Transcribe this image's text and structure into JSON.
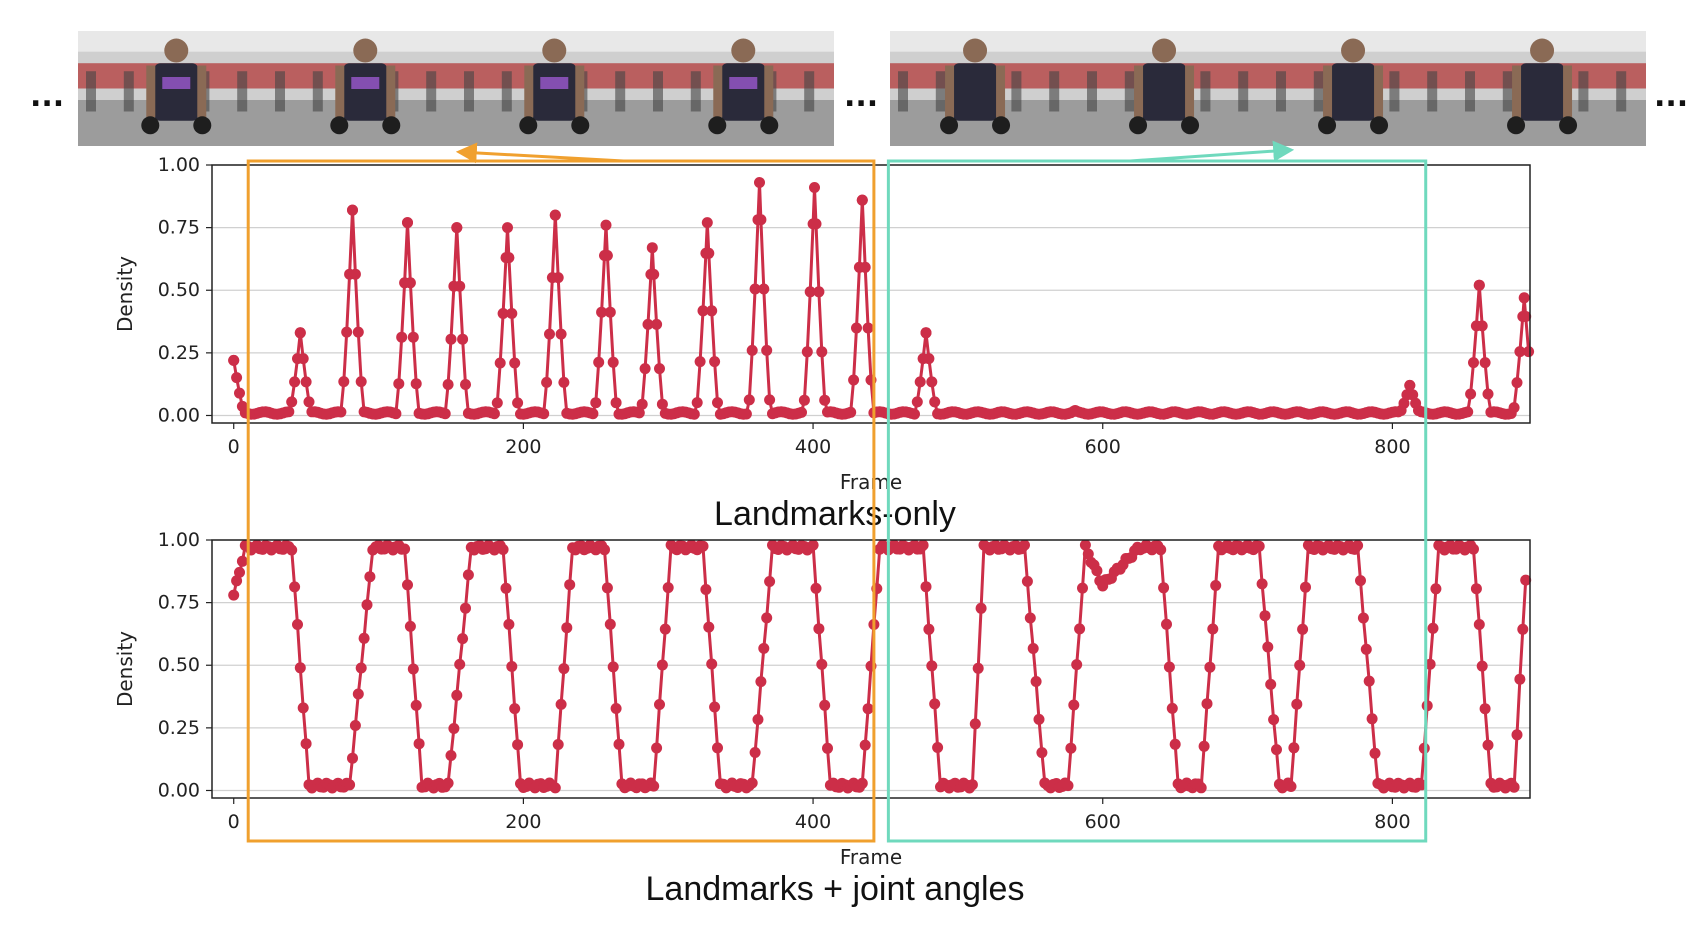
{
  "filmstrip": {
    "ellipsis": "...",
    "left_frames": [
      {
        "label": "gym-frame"
      },
      {
        "label": "gym-frame"
      },
      {
        "label": "gym-frame"
      },
      {
        "label": "gym-frame"
      }
    ],
    "right_frames": [
      {
        "label": "gym-frame"
      },
      {
        "label": "gym-frame"
      },
      {
        "label": "gym-frame"
      },
      {
        "label": "gym-frame"
      }
    ]
  },
  "colors": {
    "series": "#cc2e48",
    "orange_box": "#f0a02e",
    "teal_box": "#6fd9bd",
    "grid": "#d0d0d0",
    "axis": "#222222"
  },
  "highlight_ranges": [
    {
      "name": "orange",
      "frames": [
        10,
        442
      ]
    },
    {
      "name": "teal",
      "frames": [
        452,
        823
      ]
    }
  ],
  "chart_data": [
    {
      "type": "line",
      "title": "Landmarks-only",
      "xlabel": "Frame",
      "ylabel": "Density",
      "xlim": [
        -15,
        895
      ],
      "ylim": [
        -0.03,
        1.0
      ],
      "xticks": [
        0,
        200,
        400,
        600,
        800
      ],
      "xtick_labels": [
        "0",
        "200",
        "400",
        "600",
        "800"
      ],
      "yticks": [
        0.0,
        0.25,
        0.5,
        0.75,
        1.0
      ],
      "ytick_labels": [
        "0.00",
        "0.25",
        "0.50",
        "0.75",
        "1.00"
      ],
      "grid": true,
      "markers": true,
      "baseline": 0.01,
      "peaks": [
        [
          0,
          0.22
        ],
        [
          46,
          0.33
        ],
        [
          82,
          0.82
        ],
        [
          120,
          0.77
        ],
        [
          154,
          0.75
        ],
        [
          189,
          0.75
        ],
        [
          222,
          0.8
        ],
        [
          257,
          0.76
        ],
        [
          289,
          0.67
        ],
        [
          327,
          0.77
        ],
        [
          363,
          0.93
        ],
        [
          401,
          0.91
        ],
        [
          434,
          0.86
        ],
        [
          478,
          0.33
        ],
        [
          581,
          0.02
        ],
        [
          812,
          0.12
        ],
        [
          860,
          0.52
        ],
        [
          891,
          0.47
        ]
      ]
    },
    {
      "type": "line",
      "title": "Landmarks + joint angles",
      "xlabel": "Frame",
      "ylabel": "Density",
      "xlim": [
        -15,
        895
      ],
      "ylim": [
        -0.03,
        1.0
      ],
      "xticks": [
        0,
        200,
        400,
        600,
        800
      ],
      "xtick_labels": [
        "0",
        "200",
        "400",
        "600",
        "800"
      ],
      "yticks": [
        0.0,
        0.25,
        0.5,
        0.75,
        1.0
      ],
      "ytick_labels": [
        "0.00",
        "0.25",
        "0.50",
        "0.75",
        "1.00"
      ],
      "grid": true,
      "markers": true,
      "high": 0.97,
      "low": 0.02,
      "breakpoints": [
        [
          0,
          0.78
        ],
        [
          8,
          0.97
        ],
        [
          40,
          0.97
        ],
        [
          52,
          0.02
        ],
        [
          80,
          0.02
        ],
        [
          96,
          0.97
        ],
        [
          118,
          0.97
        ],
        [
          130,
          0.02
        ],
        [
          148,
          0.02
        ],
        [
          164,
          0.97
        ],
        [
          186,
          0.97
        ],
        [
          198,
          0.02
        ],
        [
          222,
          0.02
        ],
        [
          234,
          0.97
        ],
        [
          256,
          0.97
        ],
        [
          268,
          0.02
        ],
        [
          290,
          0.02
        ],
        [
          302,
          0.97
        ],
        [
          324,
          0.97
        ],
        [
          336,
          0.02
        ],
        [
          358,
          0.02
        ],
        [
          372,
          0.97
        ],
        [
          400,
          0.97
        ],
        [
          412,
          0.02
        ],
        [
          434,
          0.02
        ],
        [
          446,
          0.97
        ],
        [
          476,
          0.97
        ],
        [
          488,
          0.02
        ],
        [
          510,
          0.02
        ],
        [
          518,
          0.97
        ],
        [
          546,
          0.97
        ],
        [
          560,
          0.02
        ],
        [
          576,
          0.02
        ],
        [
          588,
          0.97
        ],
        [
          600,
          0.82
        ],
        [
          625,
          0.97
        ],
        [
          640,
          0.97
        ],
        [
          652,
          0.02
        ],
        [
          668,
          0.02
        ],
        [
          680,
          0.97
        ],
        [
          708,
          0.97
        ],
        [
          722,
          0.02
        ],
        [
          730,
          0.02
        ],
        [
          742,
          0.97
        ],
        [
          776,
          0.97
        ],
        [
          790,
          0.02
        ],
        [
          820,
          0.02
        ],
        [
          832,
          0.97
        ],
        [
          856,
          0.97
        ],
        [
          868,
          0.02
        ],
        [
          884,
          0.02
        ],
        [
          892,
          0.85
        ]
      ]
    }
  ]
}
